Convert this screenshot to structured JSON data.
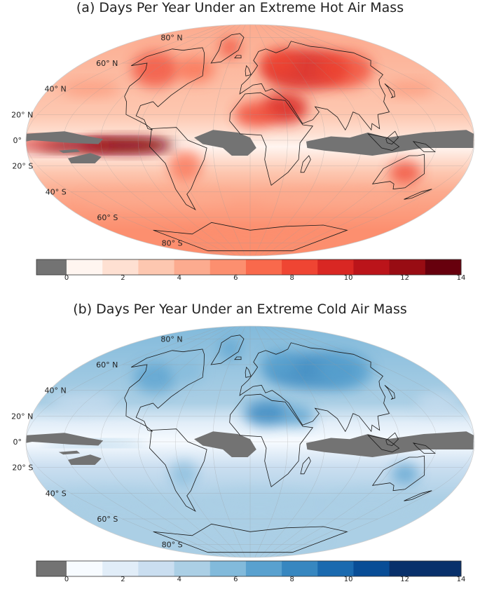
{
  "panels": [
    {
      "id": "a",
      "title": "(a) Days Per Year Under an Extreme Hot Air Mass",
      "palette": [
        "#fff5f0",
        "#fee0d2",
        "#fdc7b0",
        "#fcab8f",
        "#fc8f6f",
        "#f9694c",
        "#ef4533",
        "#d92723",
        "#bb141a",
        "#980c13",
        "#67000d"
      ],
      "colorbar": {
        "missing_color": "#737373",
        "min": 0,
        "max": 14,
        "ticks": [
          "0",
          "2",
          "4",
          "6",
          "8",
          "10",
          "12",
          "14"
        ]
      }
    },
    {
      "id": "b",
      "title": "(b) Days Per Year Under an Extreme Cold Air Mass",
      "palette": [
        "#f7fbff",
        "#e1edf8",
        "#cadef0",
        "#abcfe5",
        "#82badb",
        "#59a1cf",
        "#3787c0",
        "#1b6aaf",
        "#084d96",
        "#08306b",
        "#08306b"
      ],
      "colorbar": {
        "missing_color": "#737373",
        "min": 0,
        "max": 14,
        "ticks": [
          "0",
          "2",
          "4",
          "6",
          "8",
          "10",
          "12",
          "14"
        ]
      }
    }
  ],
  "lat_labels": [
    "80° N",
    "60° N",
    "40° N",
    "20° N",
    "0°",
    "20° S",
    "40° S",
    "60° S",
    "80° S"
  ],
  "missing_color": "#737373",
  "coastline_color": "#1a1a1a"
}
